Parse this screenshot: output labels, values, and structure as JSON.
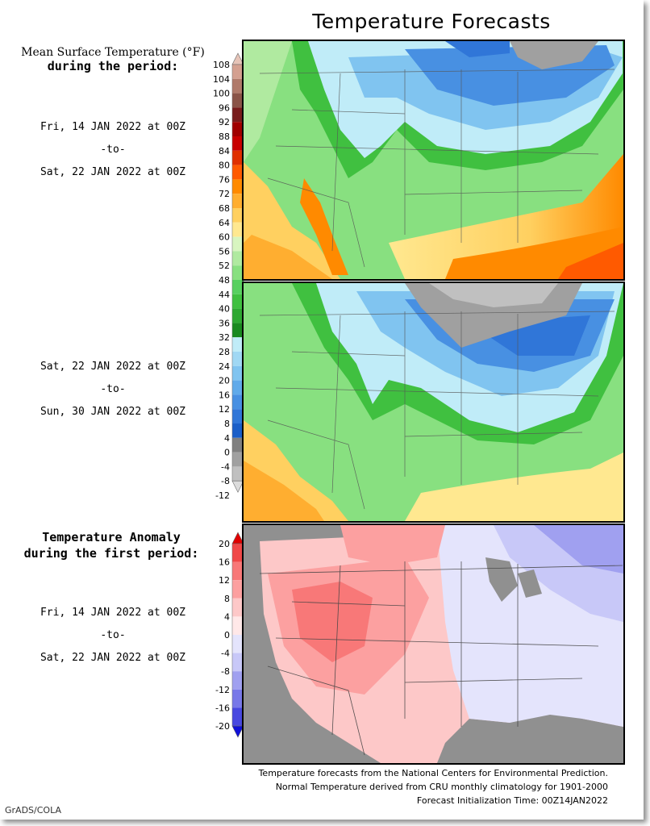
{
  "title": "Temperature Forecasts",
  "mean_legend": {
    "title_line1": "Mean Surface Temperature (°F)",
    "title_line2": "during the period:",
    "labels": [
      "108",
      "104",
      "100",
      "96",
      "92",
      "88",
      "84",
      "80",
      "76",
      "72",
      "68",
      "64",
      "60",
      "56",
      "52",
      "48",
      "44",
      "40",
      "36",
      "32",
      "28",
      "24",
      "20",
      "16",
      "12",
      "8",
      "4",
      "0",
      "-4",
      "-8",
      "-12"
    ],
    "colors": [
      "#e6c4b8",
      "#d4a090",
      "#b07a6a",
      "#8a5448",
      "#781c1c",
      "#a00000",
      "#c80000",
      "#e03000",
      "#ff5a00",
      "#ff8a00",
      "#ffae30",
      "#ffd060",
      "#ffe890",
      "#d8f5c0",
      "#b0eaa0",
      "#88e080",
      "#58d060",
      "#40c040",
      "#2ea832",
      "#1a8a20",
      "#c0ecf8",
      "#a0d8f4",
      "#80c4f0",
      "#60aaea",
      "#4890e2",
      "#3076d8",
      "#1a5ec8",
      "#808080",
      "#a0a0a0",
      "#c0c0c0",
      "#dcdcdc"
    ]
  },
  "period1": {
    "from": "Fri, 14 JAN 2022 at 00Z",
    "sep": "-to-",
    "to": "Sat, 22 JAN 2022 at 00Z"
  },
  "period2": {
    "from": "Sat, 22 JAN 2022 at 00Z",
    "sep": "-to-",
    "to": "Sun, 30 JAN 2022 at 00Z"
  },
  "anomaly_legend": {
    "title_line1": "Temperature Anomaly",
    "title_line2": "during the first period:",
    "labels": [
      "20",
      "16",
      "12",
      "8",
      "4",
      "0",
      "-4",
      "-8",
      "-12",
      "-16",
      "-20"
    ],
    "colors": [
      "#e00000",
      "#f04848",
      "#f87878",
      "#fca0a0",
      "#fdc8c8",
      "#ffe8e8",
      "#e4e4fc",
      "#c8c8f8",
      "#a0a0f0",
      "#7878e8",
      "#4848e0",
      "#1010d8"
    ]
  },
  "period3": {
    "from": "Fri, 14 JAN 2022 at 00Z",
    "sep": "-to-",
    "to": "Sat, 22 JAN 2022 at 00Z"
  },
  "footer": {
    "line1": "Temperature forecasts from the National Centers for Environmental Prediction.",
    "line2": "Normal Temperature derived from CRU monthly climatology for 1901-2000",
    "line3": "Forecast Initialization Time: 00Z14JAN2022"
  },
  "credit": "GrADS/COLA"
}
